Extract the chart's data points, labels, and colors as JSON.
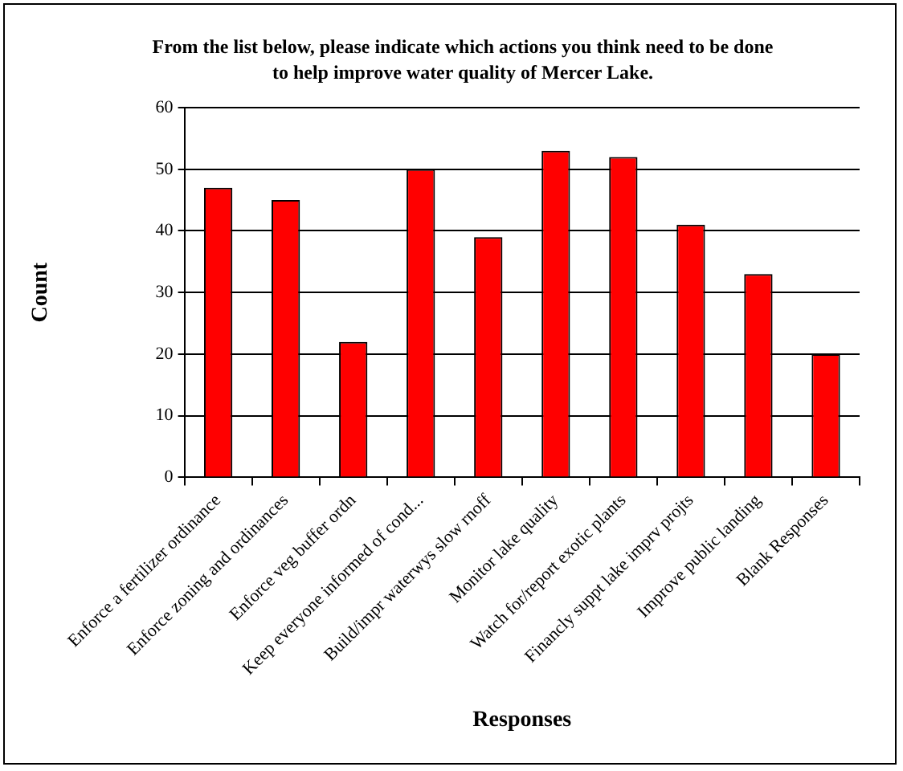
{
  "chart_data": {
    "type": "bar",
    "title": "From the list below, please indicate which actions you think need to be done to help improve water quality of Mercer Lake.",
    "xlabel": "Responses",
    "ylabel": "Count",
    "categories": [
      "Enforce a fertilizer ordinance",
      "Enforce zoning and ordinances",
      "Enforce veg buffer ordn",
      "Keep everyone informed of cond...",
      "Build/impr waterwys slow rnoff",
      "Monitor lake quality",
      "Watch for/report exotic plants",
      "Financly suppt lake imprv projts",
      "Improve public landing",
      "Blank Responses"
    ],
    "values": [
      47,
      45,
      22,
      50,
      39,
      53,
      52,
      41,
      33,
      20
    ],
    "color": "#ff0000",
    "ylim": [
      0,
      60
    ],
    "yticks": [
      0,
      10,
      20,
      30,
      40,
      50,
      60
    ],
    "grid": "y",
    "legend": false
  }
}
